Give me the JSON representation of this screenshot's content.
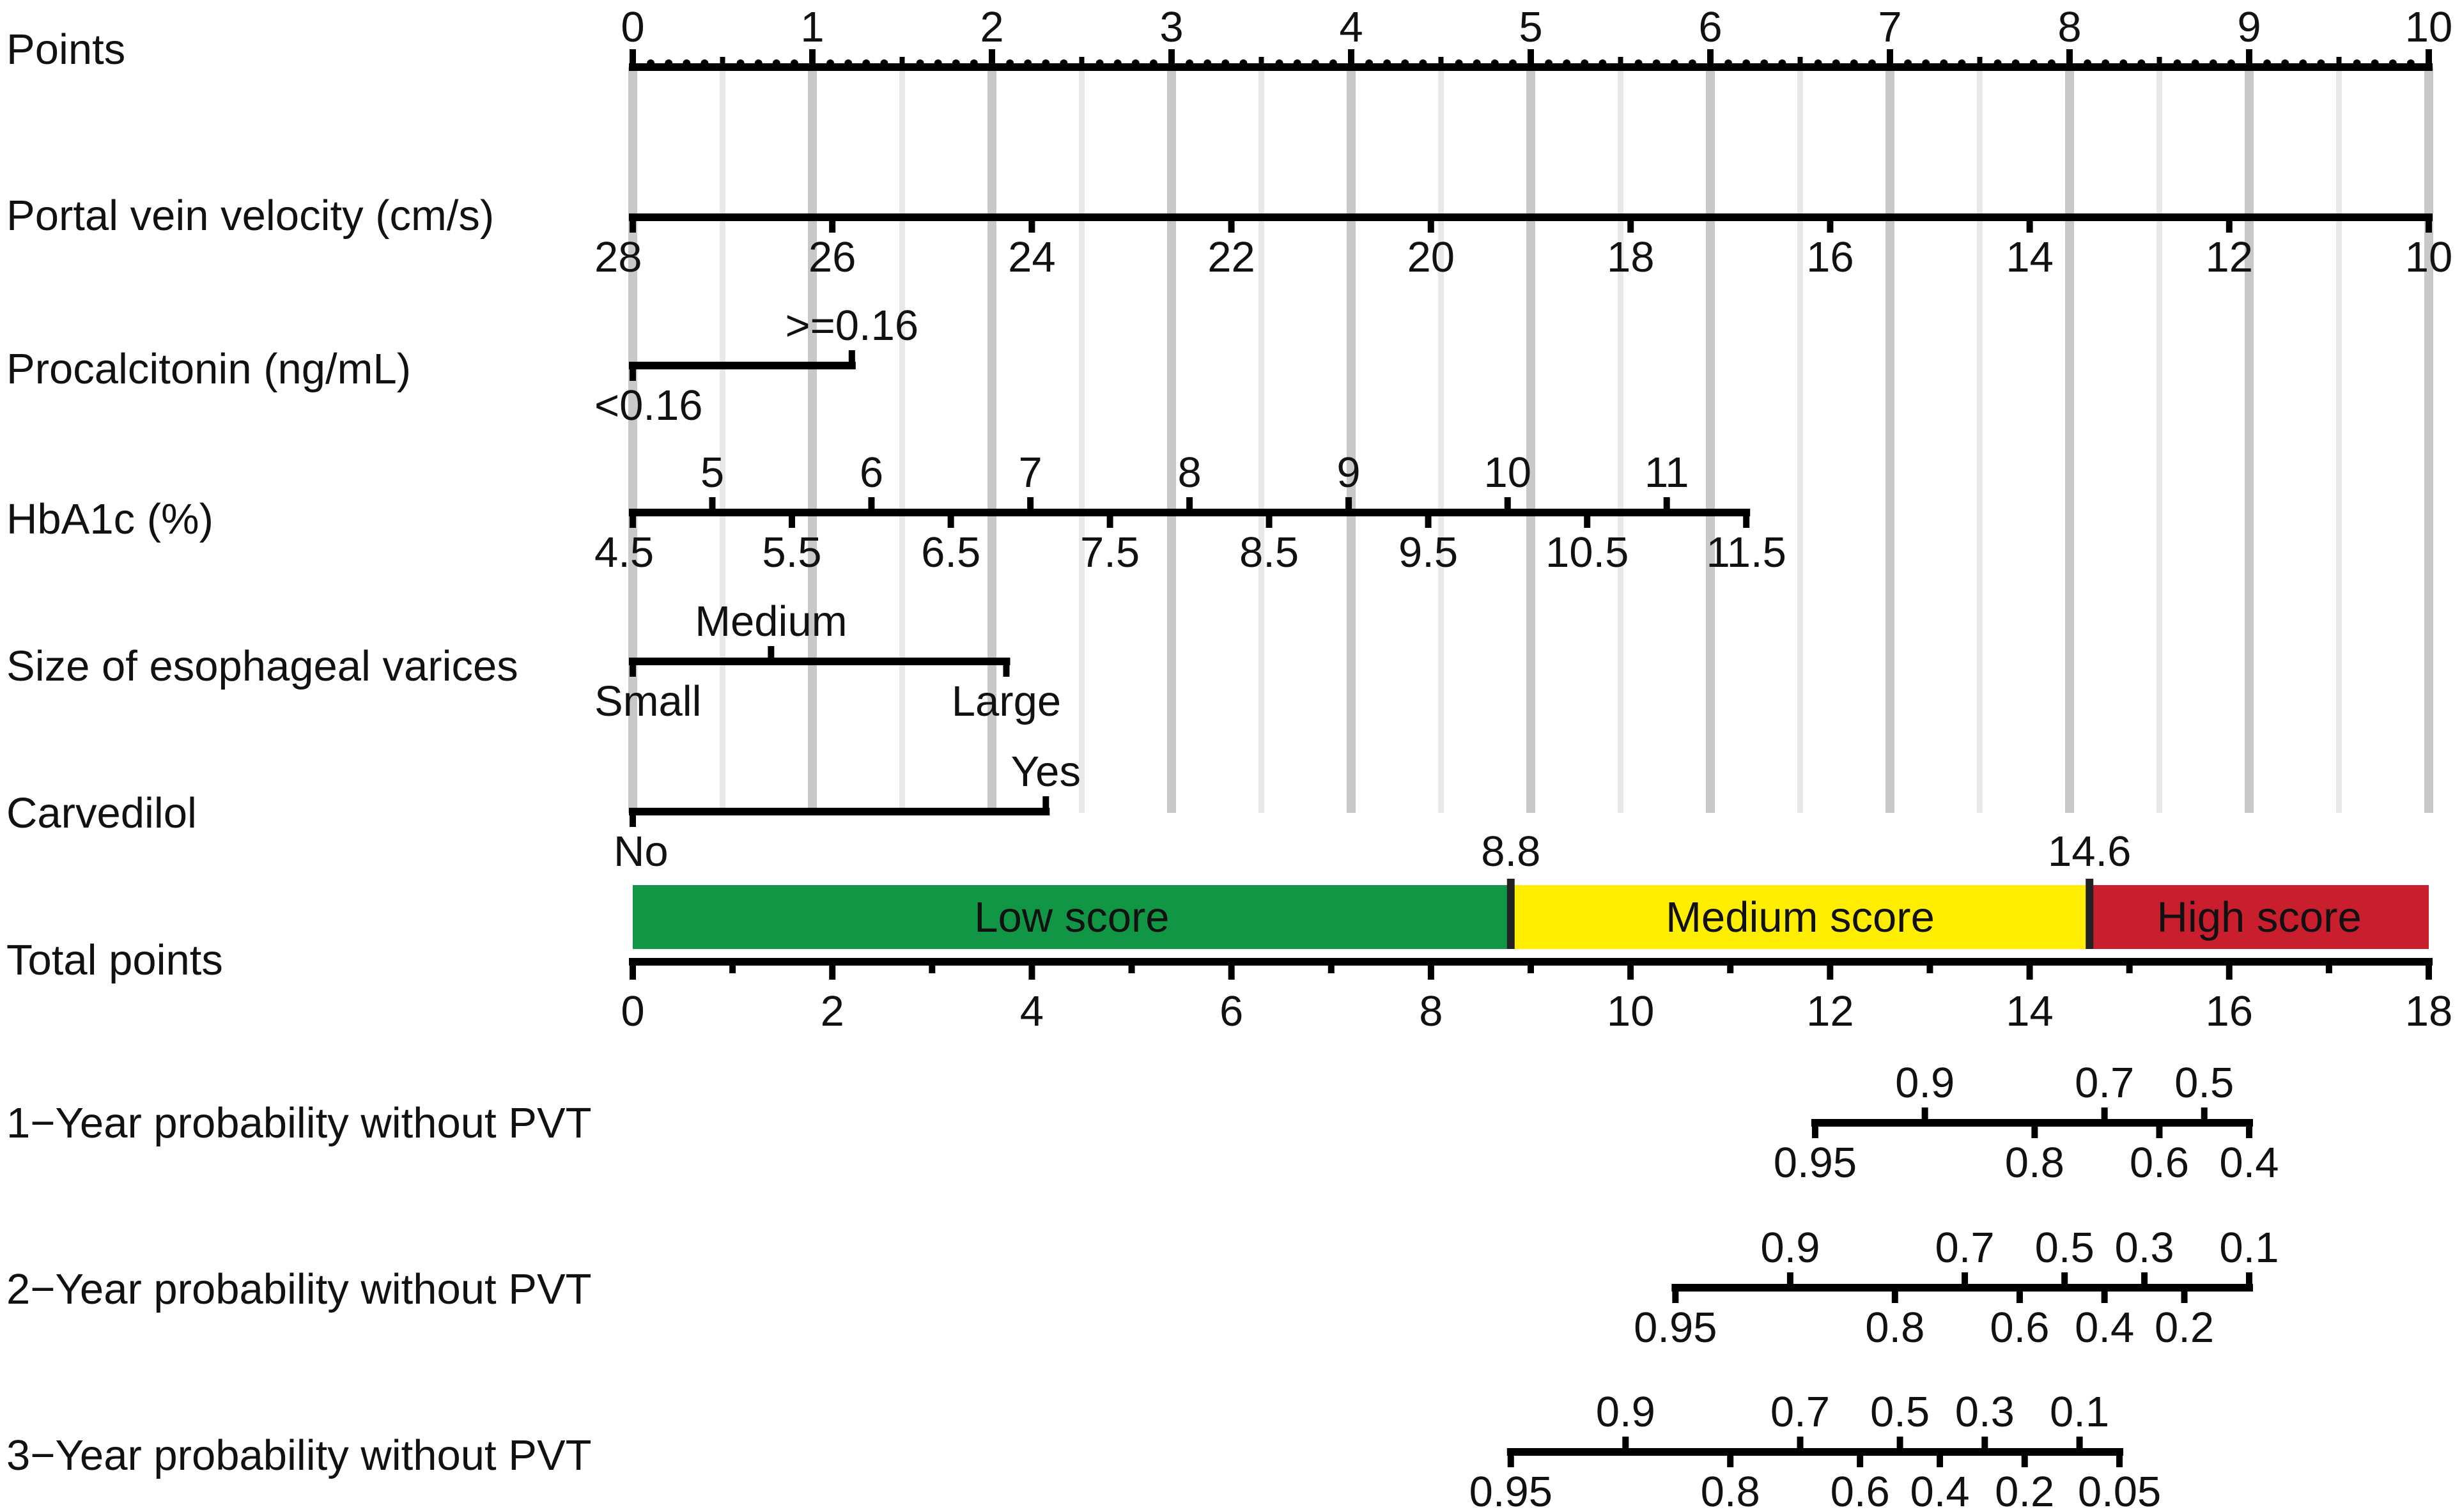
{
  "chart_data": {
    "type": "nomogram",
    "points_axis": {
      "label": "Points",
      "min": 0,
      "max": 10,
      "ticks": [
        "0",
        "1",
        "2",
        "3",
        "4",
        "5",
        "6",
        "7",
        "8",
        "9",
        "10"
      ],
      "minor_step": 0.5
    },
    "variables": [
      {
        "label": "Portal vein velocity (cm/s)",
        "range_points": [
          0,
          10
        ],
        "ticks": [
          {
            "text": "28",
            "points": 0,
            "side": "below"
          },
          {
            "text": "26",
            "points": 1.111,
            "side": "below"
          },
          {
            "text": "24",
            "points": 2.222,
            "side": "below"
          },
          {
            "text": "22",
            "points": 3.333,
            "side": "below"
          },
          {
            "text": "20",
            "points": 4.444,
            "side": "below"
          },
          {
            "text": "18",
            "points": 5.556,
            "side": "below"
          },
          {
            "text": "16",
            "points": 6.667,
            "side": "below"
          },
          {
            "text": "14",
            "points": 7.778,
            "side": "below"
          },
          {
            "text": "12",
            "points": 8.889,
            "side": "below"
          },
          {
            "text": "10",
            "points": 10,
            "side": "below"
          }
        ]
      },
      {
        "label": "Procalcitonin (ng/mL)",
        "range_points": [
          0,
          1.22
        ],
        "ticks": [
          {
            "text": "<0.16",
            "points": 0,
            "side": "below"
          },
          {
            "text": ">=0.16",
            "points": 1.22,
            "side": "above"
          }
        ]
      },
      {
        "label": "HbA1c (%)",
        "range_points": [
          0,
          6.2
        ],
        "ticks": [
          {
            "text": "4.5",
            "points": 0,
            "side": "below"
          },
          {
            "text": "5",
            "points": 0.443,
            "side": "above"
          },
          {
            "text": "5.5",
            "points": 0.886,
            "side": "below"
          },
          {
            "text": "6",
            "points": 1.329,
            "side": "above"
          },
          {
            "text": "6.5",
            "points": 1.771,
            "side": "below"
          },
          {
            "text": "7",
            "points": 2.214,
            "side": "above"
          },
          {
            "text": "7.5",
            "points": 2.657,
            "side": "below"
          },
          {
            "text": "8",
            "points": 3.1,
            "side": "above"
          },
          {
            "text": "8.5",
            "points": 3.543,
            "side": "below"
          },
          {
            "text": "9",
            "points": 3.986,
            "side": "above"
          },
          {
            "text": "9.5",
            "points": 4.429,
            "side": "below"
          },
          {
            "text": "10",
            "points": 4.871,
            "side": "above"
          },
          {
            "text": "10.5",
            "points": 5.314,
            "side": "below"
          },
          {
            "text": "11",
            "points": 5.757,
            "side": "above"
          },
          {
            "text": "11.5",
            "points": 6.2,
            "side": "below"
          }
        ]
      },
      {
        "label": "Size of esophageal varices",
        "range_points": [
          0,
          2.08
        ],
        "ticks": [
          {
            "text": "Small",
            "points": 0,
            "side": "below"
          },
          {
            "text": "Medium",
            "points": 0.77,
            "side": "above"
          },
          {
            "text": "Large",
            "points": 2.08,
            "side": "below"
          }
        ]
      },
      {
        "label": "Carvedilol",
        "range_points": [
          0,
          2.3
        ],
        "ticks": [
          {
            "text": "No",
            "points": 0,
            "side": "below"
          },
          {
            "text": "Yes",
            "points": 2.3,
            "side": "above"
          }
        ]
      }
    ],
    "total_points": {
      "label": "Total points",
      "min": 0,
      "max": 18,
      "ticks": [
        "0",
        "2",
        "4",
        "6",
        "8",
        "10",
        "12",
        "14",
        "16",
        "18"
      ],
      "minor_step": 1,
      "cutoffs": [
        "8.8",
        "14.6"
      ],
      "bands": [
        {
          "label": "Low score",
          "from": 0,
          "to": 8.8,
          "color": "#119646"
        },
        {
          "label": "Medium score",
          "from": 8.8,
          "to": 14.6,
          "color": "#FFEE00"
        },
        {
          "label": "High score",
          "from": 14.6,
          "to": 18,
          "color": "#C81E2D"
        }
      ]
    },
    "probability_scales": [
      {
        "label": "1−Year probability without PVT",
        "range_total": [
          11.85,
          16.2
        ],
        "ticks": [
          {
            "text": "0.95",
            "total": 11.85,
            "side": "below"
          },
          {
            "text": "0.9",
            "total": 12.95,
            "side": "above"
          },
          {
            "text": "0.8",
            "total": 14.05,
            "side": "below"
          },
          {
            "text": "0.7",
            "total": 14.75,
            "side": "above"
          },
          {
            "text": "0.6",
            "total": 15.3,
            "side": "below"
          },
          {
            "text": "0.5",
            "total": 15.75,
            "side": "above"
          },
          {
            "text": "0.4",
            "total": 16.2,
            "side": "below"
          }
        ]
      },
      {
        "label": "2−Year probability without PVT",
        "range_total": [
          10.45,
          16.2
        ],
        "ticks": [
          {
            "text": "0.95",
            "total": 10.45,
            "side": "below"
          },
          {
            "text": "0.9",
            "total": 11.6,
            "side": "above"
          },
          {
            "text": "0.8",
            "total": 12.65,
            "side": "below"
          },
          {
            "text": "0.7",
            "total": 13.35,
            "side": "above"
          },
          {
            "text": "0.6",
            "total": 13.9,
            "side": "below"
          },
          {
            "text": "0.5",
            "total": 14.35,
            "side": "above"
          },
          {
            "text": "0.4",
            "total": 14.75,
            "side": "below"
          },
          {
            "text": "0.3",
            "total": 15.15,
            "side": "above"
          },
          {
            "text": "0.2",
            "total": 15.55,
            "side": "below"
          },
          {
            "text": "0.1",
            "total": 16.2,
            "side": "above"
          }
        ]
      },
      {
        "label": "3−Year probability without PVT",
        "range_total": [
          8.8,
          14.9
        ],
        "ticks": [
          {
            "text": "0.95",
            "total": 8.8,
            "side": "below"
          },
          {
            "text": "0.9",
            "total": 9.95,
            "side": "above"
          },
          {
            "text": "0.8",
            "total": 11.0,
            "side": "below"
          },
          {
            "text": "0.7",
            "total": 11.7,
            "side": "above"
          },
          {
            "text": "0.6",
            "total": 12.3,
            "side": "below"
          },
          {
            "text": "0.5",
            "total": 12.7,
            "side": "above"
          },
          {
            "text": "0.4",
            "total": 13.1,
            "side": "below"
          },
          {
            "text": "0.3",
            "total": 13.55,
            "side": "above"
          },
          {
            "text": "0.2",
            "total": 13.95,
            "side": "below"
          },
          {
            "text": "0.1",
            "total": 14.5,
            "side": "above"
          },
          {
            "text": "0.05",
            "total": 14.9,
            "side": "below"
          }
        ]
      }
    ]
  }
}
